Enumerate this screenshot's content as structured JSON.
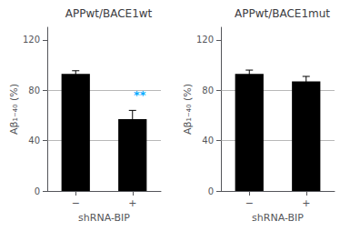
{
  "chart_data": [
    {
      "type": "bar",
      "title": "APPwt/BACE1wt",
      "ylabel": "Aβ₁₋₄₀ (%)",
      "xlabel": "shRNA-BIP",
      "categories": [
        "−",
        "+"
      ],
      "values": [
        93,
        57
      ],
      "errors": [
        2.5,
        7
      ],
      "color": "#000000",
      "ylim": [
        0,
        130
      ],
      "yticks": [
        0,
        40,
        80,
        120
      ],
      "grid": true,
      "grid_lines": [
        40,
        80
      ],
      "annotations": [
        {
          "text": "**",
          "category": "+",
          "y": 68,
          "color": "#00aaff"
        }
      ]
    },
    {
      "type": "bar",
      "title": "APPwt/BACE1mut",
      "ylabel": "Aβ₁₋₄₀ (%)",
      "xlabel": "shRNA-BIP",
      "categories": [
        "−",
        "+"
      ],
      "values": [
        93,
        87
      ],
      "errors": [
        3,
        4
      ],
      "color": "#000000",
      "ylim": [
        0,
        130
      ],
      "yticks": [
        0,
        40,
        80,
        120
      ],
      "grid": true,
      "grid_lines": [
        40,
        80
      ]
    }
  ]
}
